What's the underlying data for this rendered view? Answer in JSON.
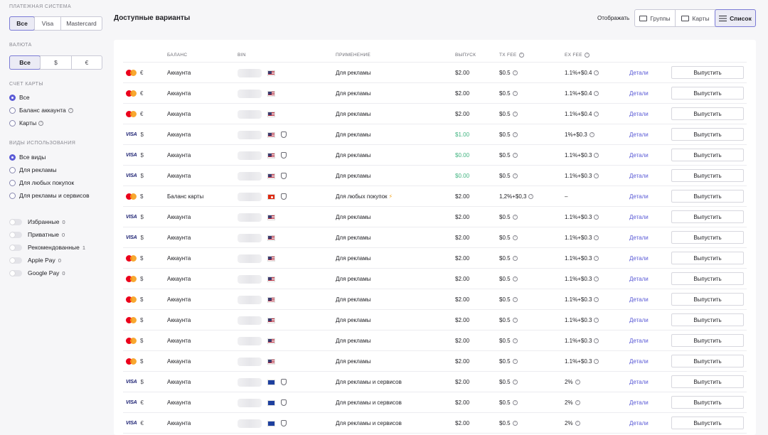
{
  "filters": {
    "payment_system": {
      "title": "ПЛАТЕЖНАЯ СИСТЕМА",
      "options": [
        "Все",
        "Visa",
        "Mastercard"
      ]
    },
    "currency": {
      "title": "ВАЛЮТА",
      "options": [
        "Все",
        "$",
        "€"
      ]
    },
    "card_account": {
      "title": "СЧЕТ КАРТЫ",
      "options": [
        "Все",
        "Баланс аккаунта",
        "Карты"
      ]
    },
    "usage": {
      "title": "ВИДЫ ИСПОЛЬЗОВАНИЯ",
      "options": [
        "Все виды",
        "Для рекламы",
        "Для любых покупок",
        "Для рекламы и сервисов"
      ]
    },
    "toggles": [
      {
        "label": "Избранные",
        "count": "0"
      },
      {
        "label": "Приватные",
        "count": "0"
      },
      {
        "label": "Рекомендованные",
        "count": "1"
      },
      {
        "label": "Apple Pay",
        "count": "0"
      },
      {
        "label": "Google Pay",
        "count": "0"
      }
    ]
  },
  "header": {
    "title": "Доступные варианты",
    "display_label": "Отображать",
    "views": [
      "Группы",
      "Карты",
      "Список"
    ]
  },
  "table": {
    "columns": [
      "БАЛАНС",
      "BIN",
      "ПРИМЕНЕНИЕ",
      "ВЫПУСК",
      "TX FEE",
      "EX FEE"
    ],
    "details_label": "Детали",
    "issue_label": "Выпустить",
    "rows": [
      {
        "brand": "mastercard",
        "currency": "€",
        "balance": "Аккаунта",
        "flag": "us",
        "shield": false,
        "usage": "Для рекламы",
        "issue": "$2.00",
        "issue_green": false,
        "tx_fee": "$0.5",
        "ex_fee": "1.1%+$0.4"
      },
      {
        "brand": "mastercard",
        "currency": "€",
        "balance": "Аккаунта",
        "flag": "us",
        "shield": false,
        "usage": "Для рекламы",
        "issue": "$2.00",
        "issue_green": false,
        "tx_fee": "$0.5",
        "ex_fee": "1.1%+$0.4"
      },
      {
        "brand": "mastercard",
        "currency": "€",
        "balance": "Аккаунта",
        "flag": "us",
        "shield": false,
        "usage": "Для рекламы",
        "issue": "$2.00",
        "issue_green": false,
        "tx_fee": "$0.5",
        "ex_fee": "1.1%+$0.4"
      },
      {
        "brand": "visa",
        "currency": "$",
        "balance": "Аккаунта",
        "flag": "us",
        "shield": true,
        "usage": "Для рекламы",
        "issue": "$1.00",
        "issue_green": true,
        "tx_fee": "$0.5",
        "ex_fee": "1%+$0.3"
      },
      {
        "brand": "visa",
        "currency": "$",
        "balance": "Аккаунта",
        "flag": "us",
        "shield": true,
        "usage": "Для рекламы",
        "issue": "$0.00",
        "issue_green": true,
        "tx_fee": "$0.5",
        "ex_fee": "1.1%+$0.3"
      },
      {
        "brand": "visa",
        "currency": "$",
        "balance": "Аккаунта",
        "flag": "us",
        "shield": true,
        "usage": "Для рекламы",
        "issue": "$0.00",
        "issue_green": true,
        "tx_fee": "$0.5",
        "ex_fee": "1.1%+$0.3"
      },
      {
        "brand": "mastercard",
        "currency": "$",
        "balance": "Баланс карты",
        "flag": "hk",
        "shield": true,
        "usage": "Для любых покупок",
        "bolt": true,
        "issue": "$2.00",
        "issue_green": false,
        "tx_fee": "1,2%+$0,3",
        "ex_fee": "–"
      },
      {
        "brand": "visa",
        "currency": "$",
        "balance": "Аккаунта",
        "flag": "us",
        "shield": false,
        "usage": "Для рекламы",
        "issue": "$2.00",
        "issue_green": false,
        "tx_fee": "$0.5",
        "ex_fee": "1.1%+$0.3"
      },
      {
        "brand": "visa",
        "currency": "$",
        "balance": "Аккаунта",
        "flag": "us",
        "shield": false,
        "usage": "Для рекламы",
        "issue": "$2.00",
        "issue_green": false,
        "tx_fee": "$0.5",
        "ex_fee": "1.1%+$0.3"
      },
      {
        "brand": "mastercard",
        "currency": "$",
        "balance": "Аккаунта",
        "flag": "us",
        "shield": false,
        "usage": "Для рекламы",
        "issue": "$2.00",
        "issue_green": false,
        "tx_fee": "$0.5",
        "ex_fee": "1.1%+$0.3"
      },
      {
        "brand": "mastercard",
        "currency": "$",
        "balance": "Аккаунта",
        "flag": "us",
        "shield": false,
        "usage": "Для рекламы",
        "issue": "$2.00",
        "issue_green": false,
        "tx_fee": "$0.5",
        "ex_fee": "1.1%+$0.3"
      },
      {
        "brand": "mastercard",
        "currency": "$",
        "balance": "Аккаунта",
        "flag": "us",
        "shield": false,
        "usage": "Для рекламы",
        "issue": "$2.00",
        "issue_green": false,
        "tx_fee": "$0.5",
        "ex_fee": "1.1%+$0.3"
      },
      {
        "brand": "mastercard",
        "currency": "$",
        "balance": "Аккаунта",
        "flag": "us",
        "shield": false,
        "usage": "Для рекламы",
        "issue": "$2.00",
        "issue_green": false,
        "tx_fee": "$0.5",
        "ex_fee": "1.1%+$0.3"
      },
      {
        "brand": "mastercard",
        "currency": "$",
        "balance": "Аккаунта",
        "flag": "us",
        "shield": false,
        "usage": "Для рекламы",
        "issue": "$2.00",
        "issue_green": false,
        "tx_fee": "$0.5",
        "ex_fee": "1.1%+$0.3"
      },
      {
        "brand": "mastercard",
        "currency": "$",
        "balance": "Аккаунта",
        "flag": "us",
        "shield": false,
        "usage": "Для рекламы",
        "issue": "$2.00",
        "issue_green": false,
        "tx_fee": "$0.5",
        "ex_fee": "1.1%+$0.3"
      },
      {
        "brand": "visa",
        "currency": "$",
        "balance": "Аккаунта",
        "flag": "eu",
        "shield": true,
        "usage": "Для рекламы и сервисов",
        "issue": "$2.00",
        "issue_green": false,
        "tx_fee": "$0.5",
        "ex_fee": "2%"
      },
      {
        "brand": "visa",
        "currency": "€",
        "balance": "Аккаунта",
        "flag": "eu",
        "shield": true,
        "usage": "Для рекламы и сервисов",
        "issue": "$2.00",
        "issue_green": false,
        "tx_fee": "$0.5",
        "ex_fee": "2%"
      },
      {
        "brand": "visa",
        "currency": "€",
        "balance": "Аккаунта",
        "flag": "eu",
        "shield": true,
        "usage": "Для рекламы и сервисов",
        "issue": "$2.00",
        "issue_green": false,
        "tx_fee": "$0.5",
        "ex_fee": "2%"
      }
    ]
  }
}
